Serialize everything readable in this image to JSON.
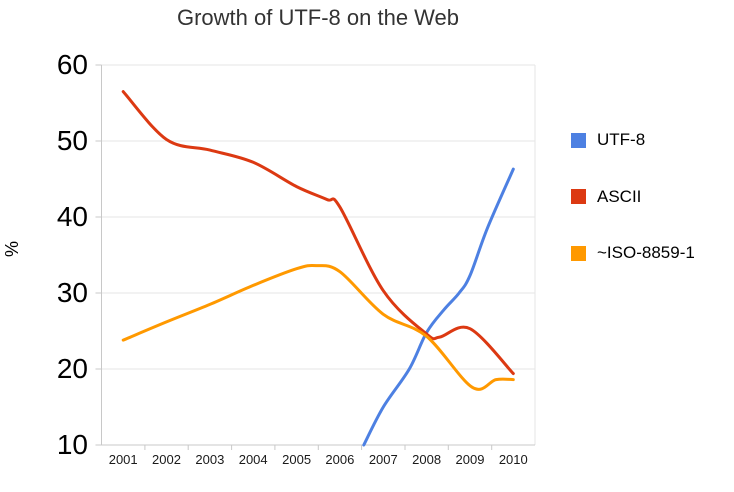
{
  "chart_data": {
    "type": "line",
    "title": "Growth of UTF-8 on the Web",
    "xlabel": "",
    "ylabel": "%",
    "x_categories": [
      "2001",
      "2002",
      "2003",
      "2004",
      "2005",
      "2006",
      "2007",
      "2008",
      "2009",
      "2010"
    ],
    "y_ticks": [
      10,
      20,
      30,
      40,
      50,
      60
    ],
    "ylim": [
      10,
      60
    ],
    "xlim": [
      2000.5,
      2010.5
    ],
    "grid": "horizontal",
    "legend_position": "right",
    "series": [
      {
        "name": "UTF-8",
        "color": "#4d80e2",
        "points": [
          [
            2006.55,
            10
          ],
          [
            2007,
            15
          ],
          [
            2007.6,
            20
          ],
          [
            2008,
            24.8
          ],
          [
            2008.4,
            27.8
          ],
          [
            2008.75,
            30
          ],
          [
            2009,
            32.3
          ],
          [
            2009.4,
            38.5
          ],
          [
            2010,
            46.3
          ]
        ]
      },
      {
        "name": "ASCII",
        "color": "#dc3912",
        "points": [
          [
            2001,
            56.5
          ],
          [
            2002,
            50.2
          ],
          [
            2003,
            48.8
          ],
          [
            2004,
            47.2
          ],
          [
            2005,
            44
          ],
          [
            2005.7,
            42.3
          ],
          [
            2006,
            41.3
          ],
          [
            2007,
            30.3
          ],
          [
            2008,
            24.6
          ],
          [
            2008.3,
            24.2
          ],
          [
            2009,
            25.3
          ],
          [
            2010,
            19.4
          ]
        ]
      },
      {
        "name": "~ISO-8859-1",
        "color": "#ff9900",
        "points": [
          [
            2001,
            23.8
          ],
          [
            2002,
            26.2
          ],
          [
            2003,
            28.5
          ],
          [
            2004,
            31
          ],
          [
            2005,
            33.2
          ],
          [
            2005.45,
            33.6
          ],
          [
            2006,
            32.8
          ],
          [
            2007,
            27.2
          ],
          [
            2008,
            24.3
          ],
          [
            2009.05,
            17.6
          ],
          [
            2009.6,
            18.6
          ],
          [
            2010,
            18.6
          ]
        ]
      }
    ]
  },
  "colors": {
    "gridline": "#e6e6e6",
    "axis": "#c8c8c8",
    "title_text": "#333333",
    "label_text": "#000000"
  }
}
